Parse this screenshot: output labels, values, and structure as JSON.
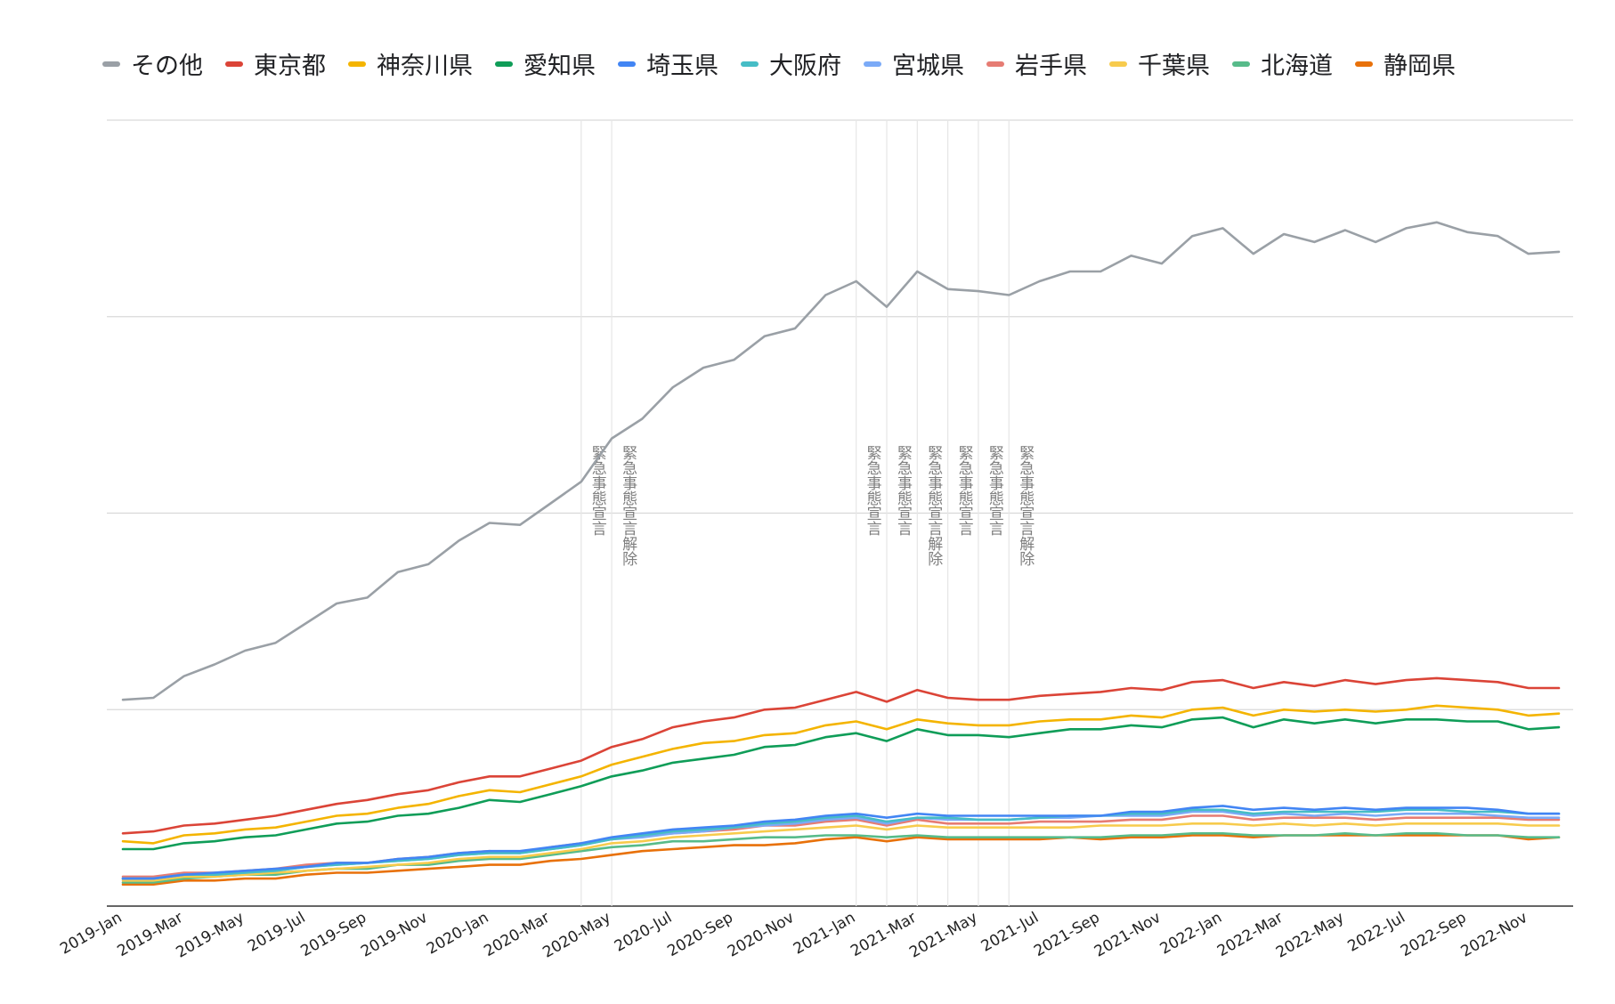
{
  "chart_data": {
    "type": "line",
    "title": "",
    "xlabel": "",
    "ylabel": "",
    "grid": true,
    "legend_position": "top",
    "x": [
      "2019-Jan",
      "2019-Feb",
      "2019-Mar",
      "2019-Apr",
      "2019-May",
      "2019-Jun",
      "2019-Jul",
      "2019-Aug",
      "2019-Sep",
      "2019-Oct",
      "2019-Nov",
      "2019-Dec",
      "2020-Jan",
      "2020-Feb",
      "2020-Mar",
      "2020-Apr",
      "2020-May",
      "2020-Jun",
      "2020-Jul",
      "2020-Aug",
      "2020-Sep",
      "2020-Oct",
      "2020-Nov",
      "2020-Dec",
      "2021-Jan",
      "2021-Feb",
      "2021-Mar",
      "2021-Apr",
      "2021-May",
      "2021-Jun",
      "2021-Jul",
      "2021-Aug",
      "2021-Sep",
      "2021-Oct",
      "2021-Nov",
      "2021-Dec",
      "2022-Jan",
      "2022-Feb",
      "2022-Mar",
      "2022-Apr",
      "2022-May",
      "2022-Jun",
      "2022-Jul",
      "2022-Aug",
      "2022-Sep",
      "2022-Oct",
      "2022-Nov",
      "2022-Dec"
    ],
    "x_tick_labels": [
      "2019-Jan",
      "2019-Mar",
      "2019-May",
      "2019-Jul",
      "2019-Sep",
      "2019-Nov",
      "2020-Jan",
      "2020-Mar",
      "2020-May",
      "2020-Jul",
      "2020-Sep",
      "2020-Nov",
      "2021-Jan",
      "2021-Mar",
      "2021-May",
      "2021-Jul",
      "2021-Sep",
      "2021-Nov",
      "2022-Jan",
      "2022-Mar",
      "2022-May",
      "2022-Jul",
      "2022-Sep",
      "2022-Nov"
    ],
    "ylim": [
      0,
      4
    ],
    "y_gridlines": [
      0,
      1,
      2,
      3,
      4
    ],
    "series": [
      {
        "name": "その他",
        "color": "#9aa0a6",
        "values": [
          1.05,
          1.06,
          1.17,
          1.23,
          1.3,
          1.34,
          1.44,
          1.54,
          1.57,
          1.7,
          1.74,
          1.86,
          1.95,
          1.94,
          2.05,
          2.16,
          2.38,
          2.48,
          2.64,
          2.74,
          2.78,
          2.9,
          2.94,
          3.11,
          3.18,
          3.05,
          3.23,
          3.14,
          3.13,
          3.11,
          3.18,
          3.23,
          3.23,
          3.31,
          3.27,
          3.41,
          3.45,
          3.32,
          3.42,
          3.38,
          3.44,
          3.38,
          3.45,
          3.48,
          3.43,
          3.41,
          3.32,
          3.33
        ]
      },
      {
        "name": "東京都",
        "color": "#db4437",
        "values": [
          0.37,
          0.38,
          0.41,
          0.42,
          0.44,
          0.46,
          0.49,
          0.52,
          0.54,
          0.57,
          0.59,
          0.63,
          0.66,
          0.66,
          0.7,
          0.74,
          0.81,
          0.85,
          0.91,
          0.94,
          0.96,
          1.0,
          1.01,
          1.05,
          1.09,
          1.04,
          1.1,
          1.06,
          1.05,
          1.05,
          1.07,
          1.08,
          1.09,
          1.11,
          1.1,
          1.14,
          1.15,
          1.11,
          1.14,
          1.12,
          1.15,
          1.13,
          1.15,
          1.16,
          1.15,
          1.14,
          1.11,
          1.11
        ]
      },
      {
        "name": "神奈川県",
        "color": "#f4b400",
        "values": [
          0.33,
          0.32,
          0.36,
          0.37,
          0.39,
          0.4,
          0.43,
          0.46,
          0.47,
          0.5,
          0.52,
          0.56,
          0.59,
          0.58,
          0.62,
          0.66,
          0.72,
          0.76,
          0.8,
          0.83,
          0.84,
          0.87,
          0.88,
          0.92,
          0.94,
          0.9,
          0.95,
          0.93,
          0.92,
          0.92,
          0.94,
          0.95,
          0.95,
          0.97,
          0.96,
          1.0,
          1.01,
          0.97,
          1.0,
          0.99,
          1.0,
          0.99,
          1.0,
          1.02,
          1.01,
          1.0,
          0.97,
          0.98
        ]
      },
      {
        "name": "愛知県",
        "color": "#0f9d58",
        "values": [
          0.29,
          0.29,
          0.32,
          0.33,
          0.35,
          0.36,
          0.39,
          0.42,
          0.43,
          0.46,
          0.47,
          0.5,
          0.54,
          0.53,
          0.57,
          0.61,
          0.66,
          0.69,
          0.73,
          0.75,
          0.77,
          0.81,
          0.82,
          0.86,
          0.88,
          0.84,
          0.9,
          0.87,
          0.87,
          0.86,
          0.88,
          0.9,
          0.9,
          0.92,
          0.91,
          0.95,
          0.96,
          0.91,
          0.95,
          0.93,
          0.95,
          0.93,
          0.95,
          0.95,
          0.94,
          0.94,
          0.9,
          0.91
        ]
      },
      {
        "name": "埼玉県",
        "color": "#4285f4",
        "values": [
          0.14,
          0.14,
          0.16,
          0.17,
          0.18,
          0.19,
          0.2,
          0.22,
          0.22,
          0.24,
          0.25,
          0.27,
          0.28,
          0.28,
          0.3,
          0.32,
          0.35,
          0.37,
          0.39,
          0.4,
          0.41,
          0.43,
          0.44,
          0.46,
          0.47,
          0.45,
          0.47,
          0.46,
          0.46,
          0.46,
          0.46,
          0.46,
          0.46,
          0.48,
          0.48,
          0.5,
          0.51,
          0.49,
          0.5,
          0.49,
          0.5,
          0.49,
          0.5,
          0.5,
          0.5,
          0.49,
          0.47,
          0.47
        ]
      },
      {
        "name": "大阪府",
        "color": "#46bdc6",
        "values": [
          0.14,
          0.14,
          0.16,
          0.16,
          0.17,
          0.18,
          0.2,
          0.21,
          0.22,
          0.23,
          0.24,
          0.26,
          0.27,
          0.27,
          0.29,
          0.31,
          0.34,
          0.36,
          0.38,
          0.39,
          0.4,
          0.42,
          0.43,
          0.45,
          0.46,
          0.43,
          0.45,
          0.45,
          0.44,
          0.44,
          0.45,
          0.46,
          0.46,
          0.47,
          0.47,
          0.49,
          0.49,
          0.47,
          0.48,
          0.48,
          0.48,
          0.48,
          0.49,
          0.49,
          0.48,
          0.48,
          0.47,
          0.47
        ]
      },
      {
        "name": "宮城県",
        "color": "#7baaf7",
        "values": [
          0.14,
          0.14,
          0.16,
          0.16,
          0.17,
          0.18,
          0.2,
          0.21,
          0.22,
          0.23,
          0.24,
          0.26,
          0.27,
          0.27,
          0.29,
          0.31,
          0.34,
          0.35,
          0.37,
          0.38,
          0.4,
          0.41,
          0.42,
          0.44,
          0.45,
          0.42,
          0.45,
          0.44,
          0.44,
          0.44,
          0.45,
          0.45,
          0.46,
          0.46,
          0.46,
          0.48,
          0.48,
          0.46,
          0.47,
          0.46,
          0.47,
          0.46,
          0.47,
          0.47,
          0.47,
          0.46,
          0.45,
          0.45
        ]
      },
      {
        "name": "岩手県",
        "color": "#e67c73",
        "values": [
          0.15,
          0.15,
          0.17,
          0.17,
          0.18,
          0.19,
          0.21,
          0.22,
          0.22,
          0.24,
          0.25,
          0.27,
          0.28,
          0.27,
          0.3,
          0.32,
          0.34,
          0.36,
          0.37,
          0.38,
          0.39,
          0.41,
          0.41,
          0.43,
          0.44,
          0.41,
          0.44,
          0.42,
          0.42,
          0.42,
          0.43,
          0.43,
          0.43,
          0.44,
          0.44,
          0.46,
          0.46,
          0.44,
          0.45,
          0.45,
          0.45,
          0.44,
          0.45,
          0.45,
          0.45,
          0.45,
          0.44,
          0.44
        ]
      },
      {
        "name": "千葉県",
        "color": "#f7cb4d",
        "values": [
          0.13,
          0.13,
          0.15,
          0.15,
          0.16,
          0.17,
          0.18,
          0.19,
          0.2,
          0.21,
          0.22,
          0.24,
          0.25,
          0.25,
          0.27,
          0.29,
          0.32,
          0.33,
          0.35,
          0.36,
          0.37,
          0.38,
          0.39,
          0.4,
          0.41,
          0.39,
          0.41,
          0.4,
          0.4,
          0.4,
          0.4,
          0.4,
          0.41,
          0.41,
          0.41,
          0.42,
          0.42,
          0.41,
          0.42,
          0.41,
          0.42,
          0.41,
          0.42,
          0.42,
          0.42,
          0.42,
          0.41,
          0.41
        ]
      },
      {
        "name": "北海道",
        "color": "#57bb8a",
        "values": [
          0.12,
          0.12,
          0.14,
          0.15,
          0.16,
          0.16,
          0.18,
          0.19,
          0.19,
          0.21,
          0.21,
          0.23,
          0.24,
          0.24,
          0.26,
          0.28,
          0.3,
          0.31,
          0.33,
          0.33,
          0.34,
          0.35,
          0.35,
          0.36,
          0.36,
          0.35,
          0.36,
          0.35,
          0.35,
          0.35,
          0.35,
          0.35,
          0.35,
          0.36,
          0.36,
          0.37,
          0.37,
          0.36,
          0.36,
          0.36,
          0.37,
          0.36,
          0.37,
          0.37,
          0.36,
          0.36,
          0.35,
          0.35
        ]
      },
      {
        "name": "静岡県",
        "color": "#e8710a",
        "values": [
          0.11,
          0.11,
          0.13,
          0.13,
          0.14,
          0.14,
          0.16,
          0.17,
          0.17,
          0.18,
          0.19,
          0.2,
          0.21,
          0.21,
          0.23,
          0.24,
          0.26,
          0.28,
          0.29,
          0.3,
          0.31,
          0.31,
          0.32,
          0.34,
          0.35,
          0.33,
          0.35,
          0.34,
          0.34,
          0.34,
          0.34,
          0.35,
          0.34,
          0.35,
          0.35,
          0.36,
          0.36,
          0.35,
          0.36,
          0.36,
          0.36,
          0.36,
          0.36,
          0.36,
          0.36,
          0.36,
          0.34,
          0.35
        ]
      }
    ],
    "annotations": [
      {
        "x": "2020-Apr",
        "text": "緊急事態宣言"
      },
      {
        "x": "2020-May",
        "text": "緊急事態宣言解除"
      },
      {
        "x": "2021-Jan",
        "text": "緊急事態宣言"
      },
      {
        "x": "2021-Feb",
        "text": "緊急事態宣言"
      },
      {
        "x": "2021-Mar",
        "text": "緊急事態宣言解除"
      },
      {
        "x": "2021-Apr",
        "text": "緊急事態宣言"
      },
      {
        "x": "2021-May",
        "text": "緊急事態宣言"
      },
      {
        "x": "2021-Jun",
        "text": "緊急事態宣言解除"
      }
    ]
  }
}
